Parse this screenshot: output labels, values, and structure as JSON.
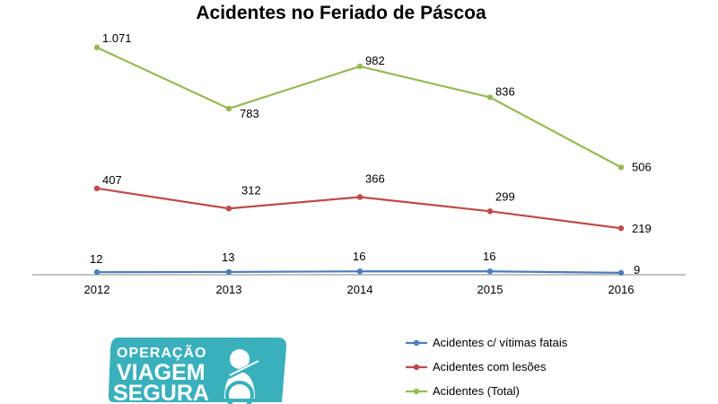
{
  "chart_data": {
    "type": "line",
    "title": "Acidentes no Feriado de Páscoa",
    "categories": [
      "2012",
      "2013",
      "2014",
      "2015",
      "2016"
    ],
    "series": [
      {
        "name": "Acidentes c/ vítimas fatais",
        "values": [
          12,
          13,
          16,
          16,
          9
        ],
        "labels": [
          "12",
          "13",
          "16",
          "16",
          "9"
        ],
        "color": "#4a7ebb"
      },
      {
        "name": "Acidentes com lesões",
        "values": [
          407,
          312,
          366,
          299,
          219
        ],
        "labels": [
          "407",
          "312",
          "366",
          "299",
          "219"
        ],
        "color": "#be4b48"
      },
      {
        "name": "Acidentes (Total)",
        "values": [
          1071,
          783,
          982,
          836,
          506
        ],
        "labels": [
          "1.071",
          "783",
          "982",
          "836",
          "506"
        ],
        "color": "#98b954"
      }
    ],
    "legend_position": "bottom-right",
    "grid": false
  },
  "logo": {
    "line1": "OPERAÇÃO",
    "line2": "VIAGEM",
    "line3": "SEGURA",
    "color": "#3ab0bd"
  }
}
